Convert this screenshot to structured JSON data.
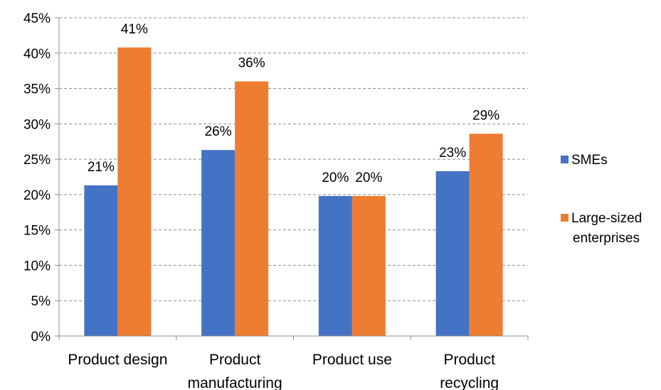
{
  "chart_data": {
    "type": "bar",
    "categories": [
      [
        "Product design"
      ],
      [
        "Product",
        "manufacturing"
      ],
      [
        "Product use"
      ],
      [
        "Product",
        "recycling"
      ]
    ],
    "series": [
      {
        "name": "SMEs",
        "color": "#4472C4",
        "values": [
          21.3,
          26.3,
          19.8,
          23.3
        ],
        "labels": [
          "21%",
          "26%",
          "20%",
          "23%"
        ]
      },
      {
        "name": "Large-sized enterprises",
        "legend_lines": [
          "Large-sized",
          "enterprises"
        ],
        "color": "#ED7D31",
        "values": [
          40.8,
          36.0,
          19.8,
          28.6
        ],
        "labels": [
          "41%",
          "36%",
          "20%",
          "29%"
        ]
      }
    ],
    "y_ticks": [
      0,
      5,
      10,
      15,
      20,
      25,
      30,
      35,
      40,
      45
    ],
    "y_tick_labels": [
      "0%",
      "5%",
      "10%",
      "15%",
      "20%",
      "25%",
      "30%",
      "35%",
      "40%",
      "45%"
    ],
    "ylim": [
      0,
      45
    ],
    "grid": true,
    "legend": "right"
  }
}
